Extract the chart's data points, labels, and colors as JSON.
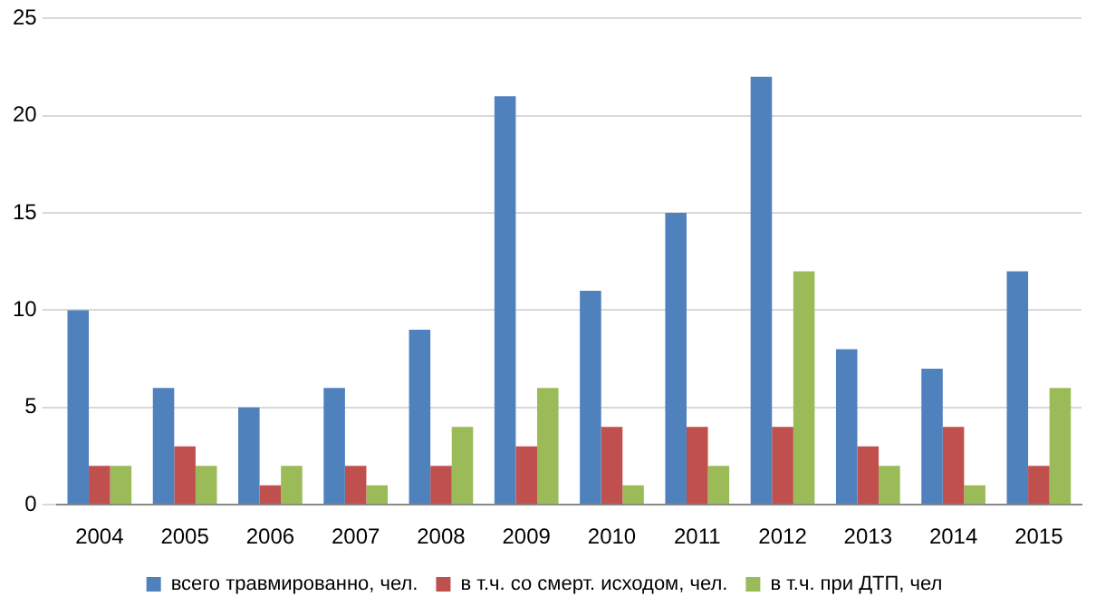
{
  "chart_data": {
    "type": "bar",
    "categories": [
      "2004",
      "2005",
      "2006",
      "2007",
      "2008",
      "2009",
      "2010",
      "2011",
      "2012",
      "2013",
      "2014",
      "2015"
    ],
    "series": [
      {
        "name": "всего травмированно, чел.",
        "color": "#4f81bd",
        "values": [
          10,
          6,
          5,
          6,
          9,
          21,
          11,
          15,
          22,
          8,
          7,
          12
        ]
      },
      {
        "name": "в т.ч. со смерт. исходом, чел.",
        "color": "#c0504d",
        "values": [
          2,
          3,
          1,
          2,
          2,
          3,
          4,
          4,
          4,
          3,
          4,
          2
        ]
      },
      {
        "name": "в т.ч. при ДТП, чел",
        "color": "#9bbb59",
        "values": [
          2,
          2,
          2,
          1,
          4,
          6,
          1,
          2,
          12,
          2,
          1,
          6
        ]
      }
    ],
    "ylim": [
      0,
      25
    ],
    "yticks": [
      0,
      5,
      10,
      15,
      20,
      25
    ],
    "grid": "y",
    "legend": "bottom"
  }
}
